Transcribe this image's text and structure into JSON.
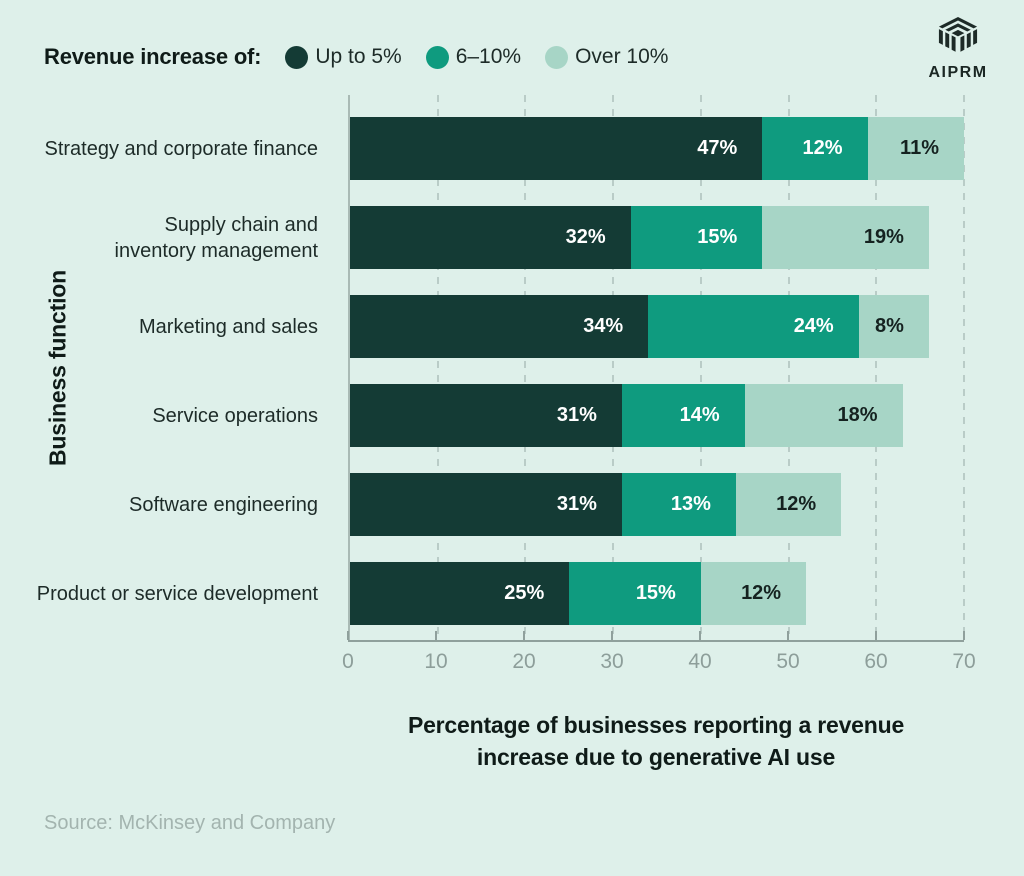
{
  "legend": {
    "title": "Revenue increase of:",
    "items": [
      {
        "label": "Up to 5%",
        "color": "#143B35"
      },
      {
        "label": "6–10%",
        "color": "#0F9B7F"
      },
      {
        "label": "Over 10%",
        "color": "#A7D5C6"
      }
    ]
  },
  "logo": {
    "text": "AIPRM"
  },
  "chart_data": {
    "type": "bar",
    "orientation": "horizontal",
    "stacked": true,
    "title": "Percentage of businesses reporting a revenue increase due to generative AI use",
    "xlabel_lines": [
      "Percentage of businesses reporting a revenue",
      "increase due to generative AI use"
    ],
    "ylabel": "Business function",
    "categories": [
      "Strategy and corporate finance",
      "Supply chain and\ninventory management",
      "Marketing and sales",
      "Service operations",
      "Software engineering",
      "Product or service development"
    ],
    "series": [
      {
        "name": "Up to 5%",
        "color": "#143B35",
        "label_color": "#FFFFFF",
        "values": [
          47,
          32,
          34,
          31,
          31,
          25
        ]
      },
      {
        "name": "6–10%",
        "color": "#0F9B7F",
        "label_color": "#FFFFFF",
        "values": [
          12,
          15,
          24,
          14,
          13,
          15
        ]
      },
      {
        "name": "Over 10%",
        "color": "#A7D5C6",
        "label_color": "#152220",
        "values": [
          11,
          19,
          8,
          18,
          12,
          12
        ]
      }
    ],
    "value_suffix": "%",
    "xlim": [
      0,
      70
    ],
    "x_ticks": [
      0,
      10,
      20,
      30,
      40,
      50,
      60,
      70
    ],
    "grid": "vertical-dashed",
    "legend_position": "top-left",
    "background_color": "#DEF0EA"
  },
  "source": "Source: McKinsey and Company"
}
